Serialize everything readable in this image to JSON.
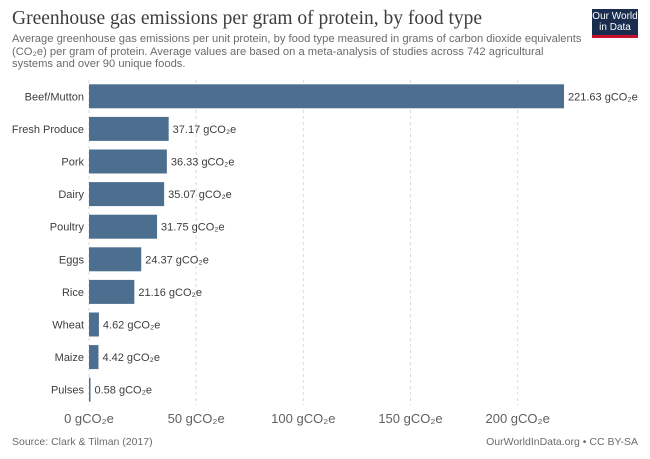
{
  "header": {
    "title": "Greenhouse gas emissions per gram of protein, by food type",
    "subtitle": "Average greenhouse gas emissions per unit protein, by food type measured in grams of carbon dioxide equivalents (CO₂e) per gram of protein. Average values are based on a meta-analysis of studies across 742 agricultural systems and over 90 unique foods."
  },
  "logo": {
    "line1": "Our World",
    "line2": "in Data"
  },
  "footer": {
    "source": "Source: Clark & Tilman (2017)",
    "license": "OurWorldInData.org • CC BY-SA"
  },
  "colors": {
    "bar": "#4d6f8f",
    "grid": "#d9d9d9",
    "text": "#3d3d3d",
    "logo_bg": "#1a2d4f",
    "logo_accent": "#c8102e"
  },
  "chart_data": {
    "type": "bar",
    "orientation": "horizontal",
    "unit": "gCO₂e",
    "categories": [
      "Beef/Mutton",
      "Fresh Produce",
      "Pork",
      "Dairy",
      "Poultry",
      "Eggs",
      "Rice",
      "Wheat",
      "Maize",
      "Pulses"
    ],
    "values": [
      221.63,
      37.17,
      36.33,
      35.07,
      31.75,
      24.37,
      21.16,
      4.62,
      4.42,
      0.58
    ],
    "data_labels": [
      "221.63 gCO₂e",
      "37.17 gCO₂e",
      "36.33 gCO₂e",
      "35.07 gCO₂e",
      "31.75 gCO₂e",
      "24.37 gCO₂e",
      "21.16 gCO₂e",
      "4.62 gCO₂e",
      "4.42 gCO₂e",
      "0.58 gCO₂e"
    ],
    "x_ticks": [
      0,
      50,
      100,
      150,
      200
    ],
    "x_tick_labels": [
      "0 gCO₂e",
      "50 gCO₂e",
      "100 gCO₂e",
      "150 gCO₂e",
      "200 gCO₂e"
    ],
    "xlim": [
      0,
      221.63
    ],
    "grid": true,
    "legend": "none"
  }
}
